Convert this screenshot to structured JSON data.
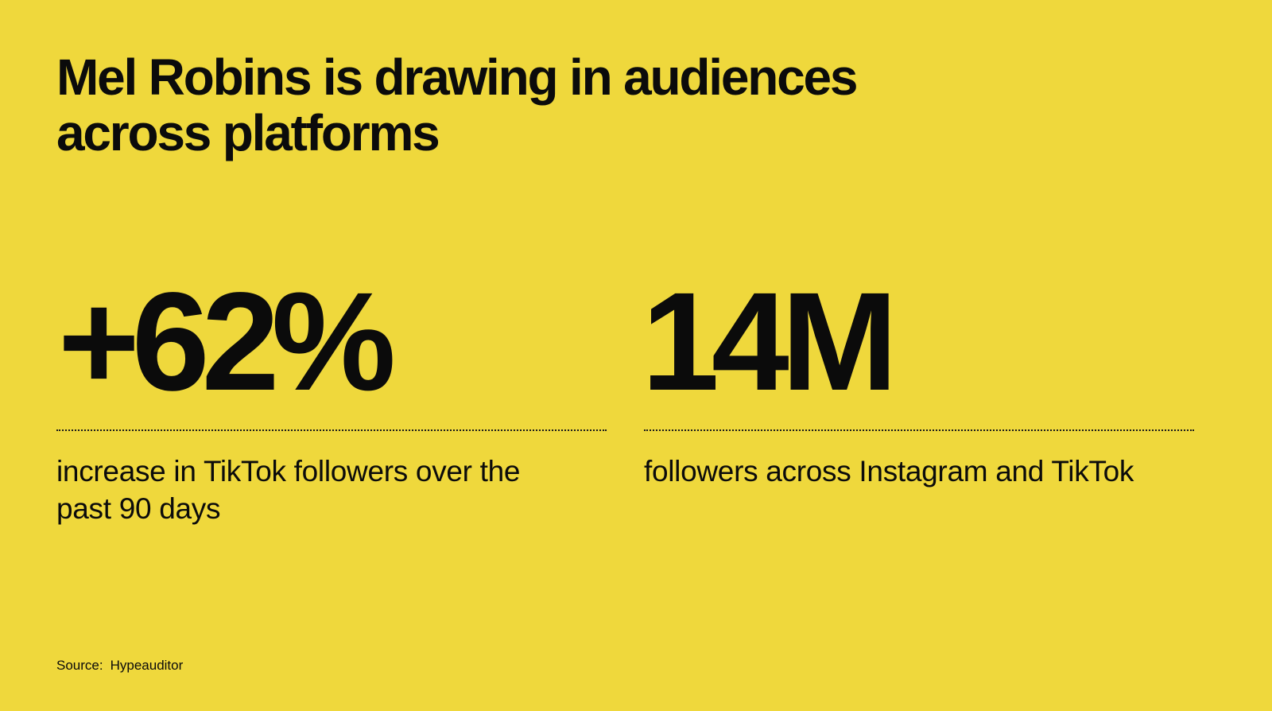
{
  "colors": {
    "background": "#efd83c",
    "text": "#0b0b0b"
  },
  "title": "Mel Robins is drawing in audiences across platforms",
  "stats": [
    {
      "value": "+62%",
      "description": "increase in TikTok followers over the past 90 days"
    },
    {
      "value": "14M",
      "description": "followers across Instagram and TikTok"
    }
  ],
  "source": {
    "label": "Source:",
    "value": "Hypeauditor"
  }
}
